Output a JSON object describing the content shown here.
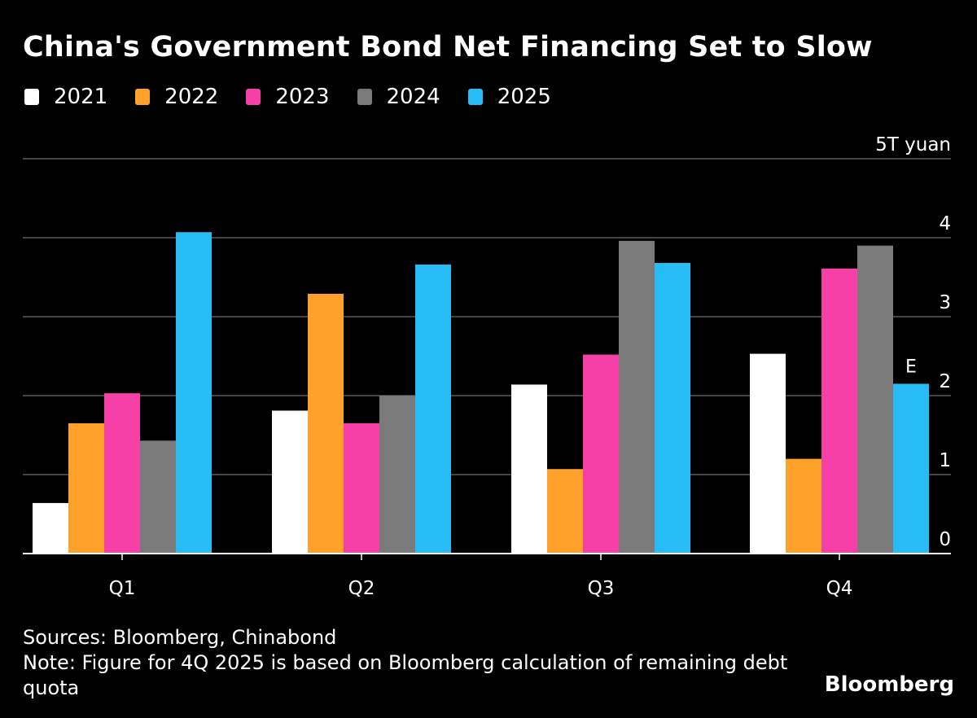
{
  "chart_data": {
    "type": "bar",
    "title": "China's Government Bond Net Financing Set to Slow",
    "xlabel": "",
    "ylabel": "T yuan",
    "unit_label": "5T yuan",
    "categories": [
      "Q1",
      "Q2",
      "Q3",
      "Q4"
    ],
    "ylim": [
      0,
      5
    ],
    "yticks": [
      "0",
      "1",
      "2",
      "3",
      "4",
      "5T yuan"
    ],
    "grid": true,
    "legend_position": "top-left",
    "series": [
      {
        "name": "2021",
        "color": "#ffffff",
        "values": [
          0.64,
          1.81,
          2.14,
          2.53
        ]
      },
      {
        "name": "2022",
        "color": "#ffa12b",
        "values": [
          1.65,
          3.29,
          1.07,
          1.2
        ]
      },
      {
        "name": "2023",
        "color": "#f63fa7",
        "values": [
          2.03,
          1.65,
          2.52,
          3.61
        ]
      },
      {
        "name": "2024",
        "color": "#7a7a7a",
        "values": [
          1.43,
          2.0,
          3.96,
          3.9
        ]
      },
      {
        "name": "2025",
        "color": "#28bcf7",
        "values": [
          4.07,
          3.66,
          3.68,
          2.15
        ]
      }
    ],
    "annotations": [
      {
        "category": "Q4",
        "series": "2025",
        "text": "E"
      }
    ]
  },
  "footer": {
    "sources": "Sources: Bloomberg, Chinabond",
    "note_line1": "Note: Figure for 4Q 2025 is based on Bloomberg calculation of remaining debt",
    "note_line2": "quota",
    "brand": "Bloomberg"
  }
}
